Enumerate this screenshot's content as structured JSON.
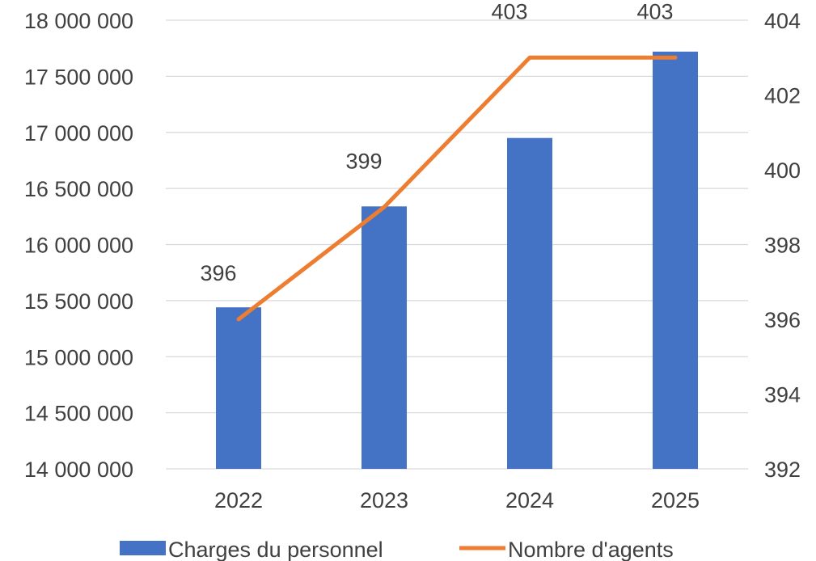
{
  "chart_data": {
    "type": "bar",
    "categories": [
      "2022",
      "2023",
      "2024",
      "2025"
    ],
    "series": [
      {
        "name": "Charges du personnel",
        "type": "bar",
        "axis": "left",
        "color": "#4472C4",
        "values": [
          15440000,
          16340000,
          16950000,
          17720000
        ]
      },
      {
        "name": "Nombre d'agents",
        "type": "line",
        "axis": "right",
        "color": "#ED7D31",
        "values": [
          396,
          399,
          403,
          403
        ],
        "data_labels": [
          "396",
          "399",
          "403",
          "403"
        ]
      }
    ],
    "y_left": {
      "ylim": [
        14000000,
        18000000
      ],
      "tick_labels": [
        "14 000 000",
        "14 500 000",
        "15 000 000",
        "15 500 000",
        "16 000 000",
        "16 500 000",
        "17 000 000",
        "17 500 000",
        "18 000 000"
      ]
    },
    "y_right": {
      "ylim": [
        392,
        404
      ],
      "tick_labels": [
        "392",
        "394",
        "396",
        "398",
        "400",
        "402",
        "404"
      ]
    },
    "grid": true,
    "legend": "bottom"
  }
}
